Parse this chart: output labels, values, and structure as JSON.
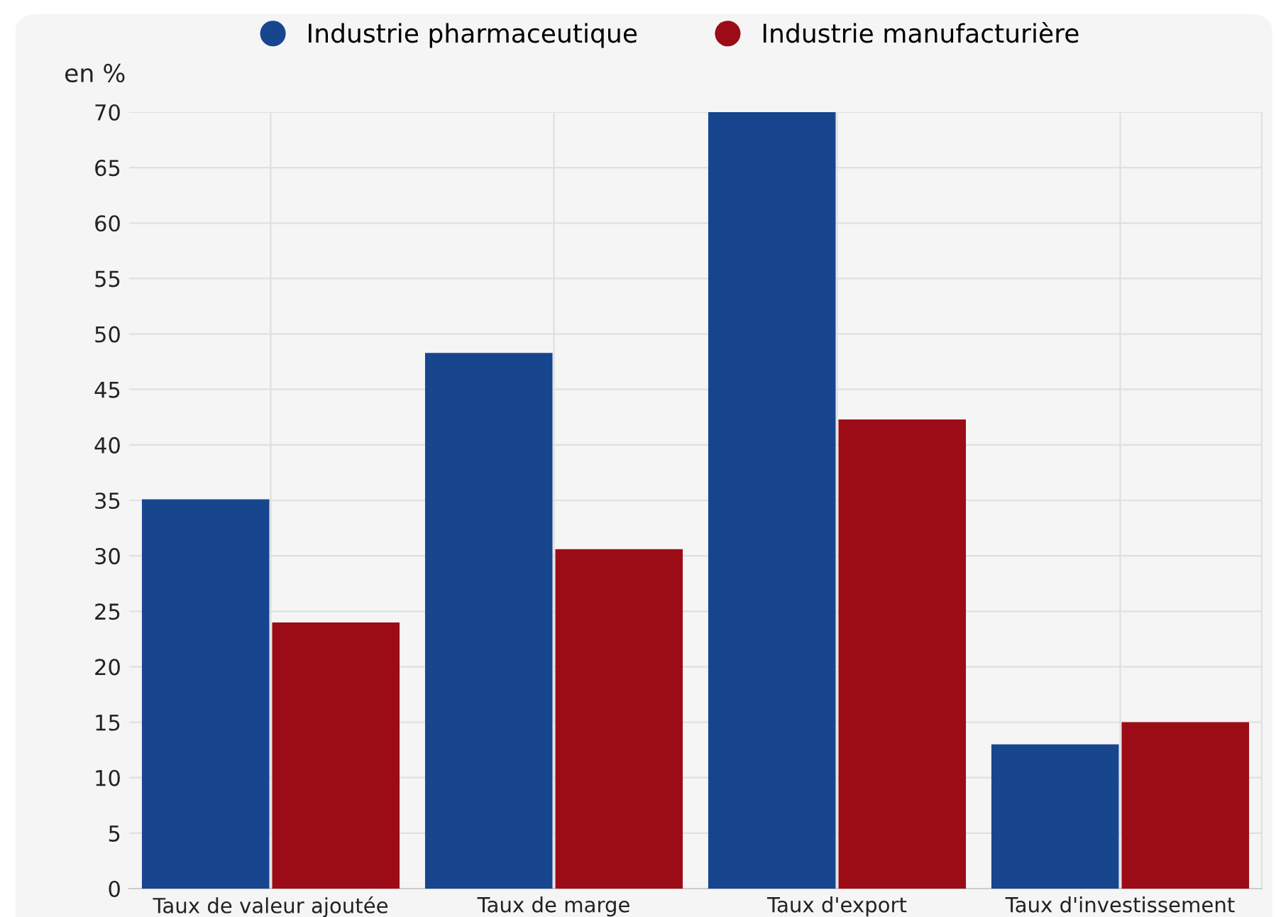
{
  "chart_data": {
    "type": "bar",
    "ylabel": "en %",
    "categories": [
      "Taux de valeur ajoutée",
      "Taux de marge",
      "Taux d'export",
      "Taux d'investissement"
    ],
    "series": [
      {
        "name": "Industrie pharmaceutique",
        "color": "#17468f",
        "values": [
          35.1,
          48.3,
          70,
          13
        ]
      },
      {
        "name": "Industrie manufacturière",
        "color": "#9c0c17",
        "values": [
          24,
          30.6,
          42.3,
          15
        ]
      }
    ],
    "ylim": [
      0,
      70
    ],
    "yticks": [
      0,
      5,
      10,
      15,
      20,
      25,
      30,
      35,
      40,
      45,
      50,
      55,
      60,
      65,
      70
    ],
    "grid": true,
    "legend": "top"
  }
}
